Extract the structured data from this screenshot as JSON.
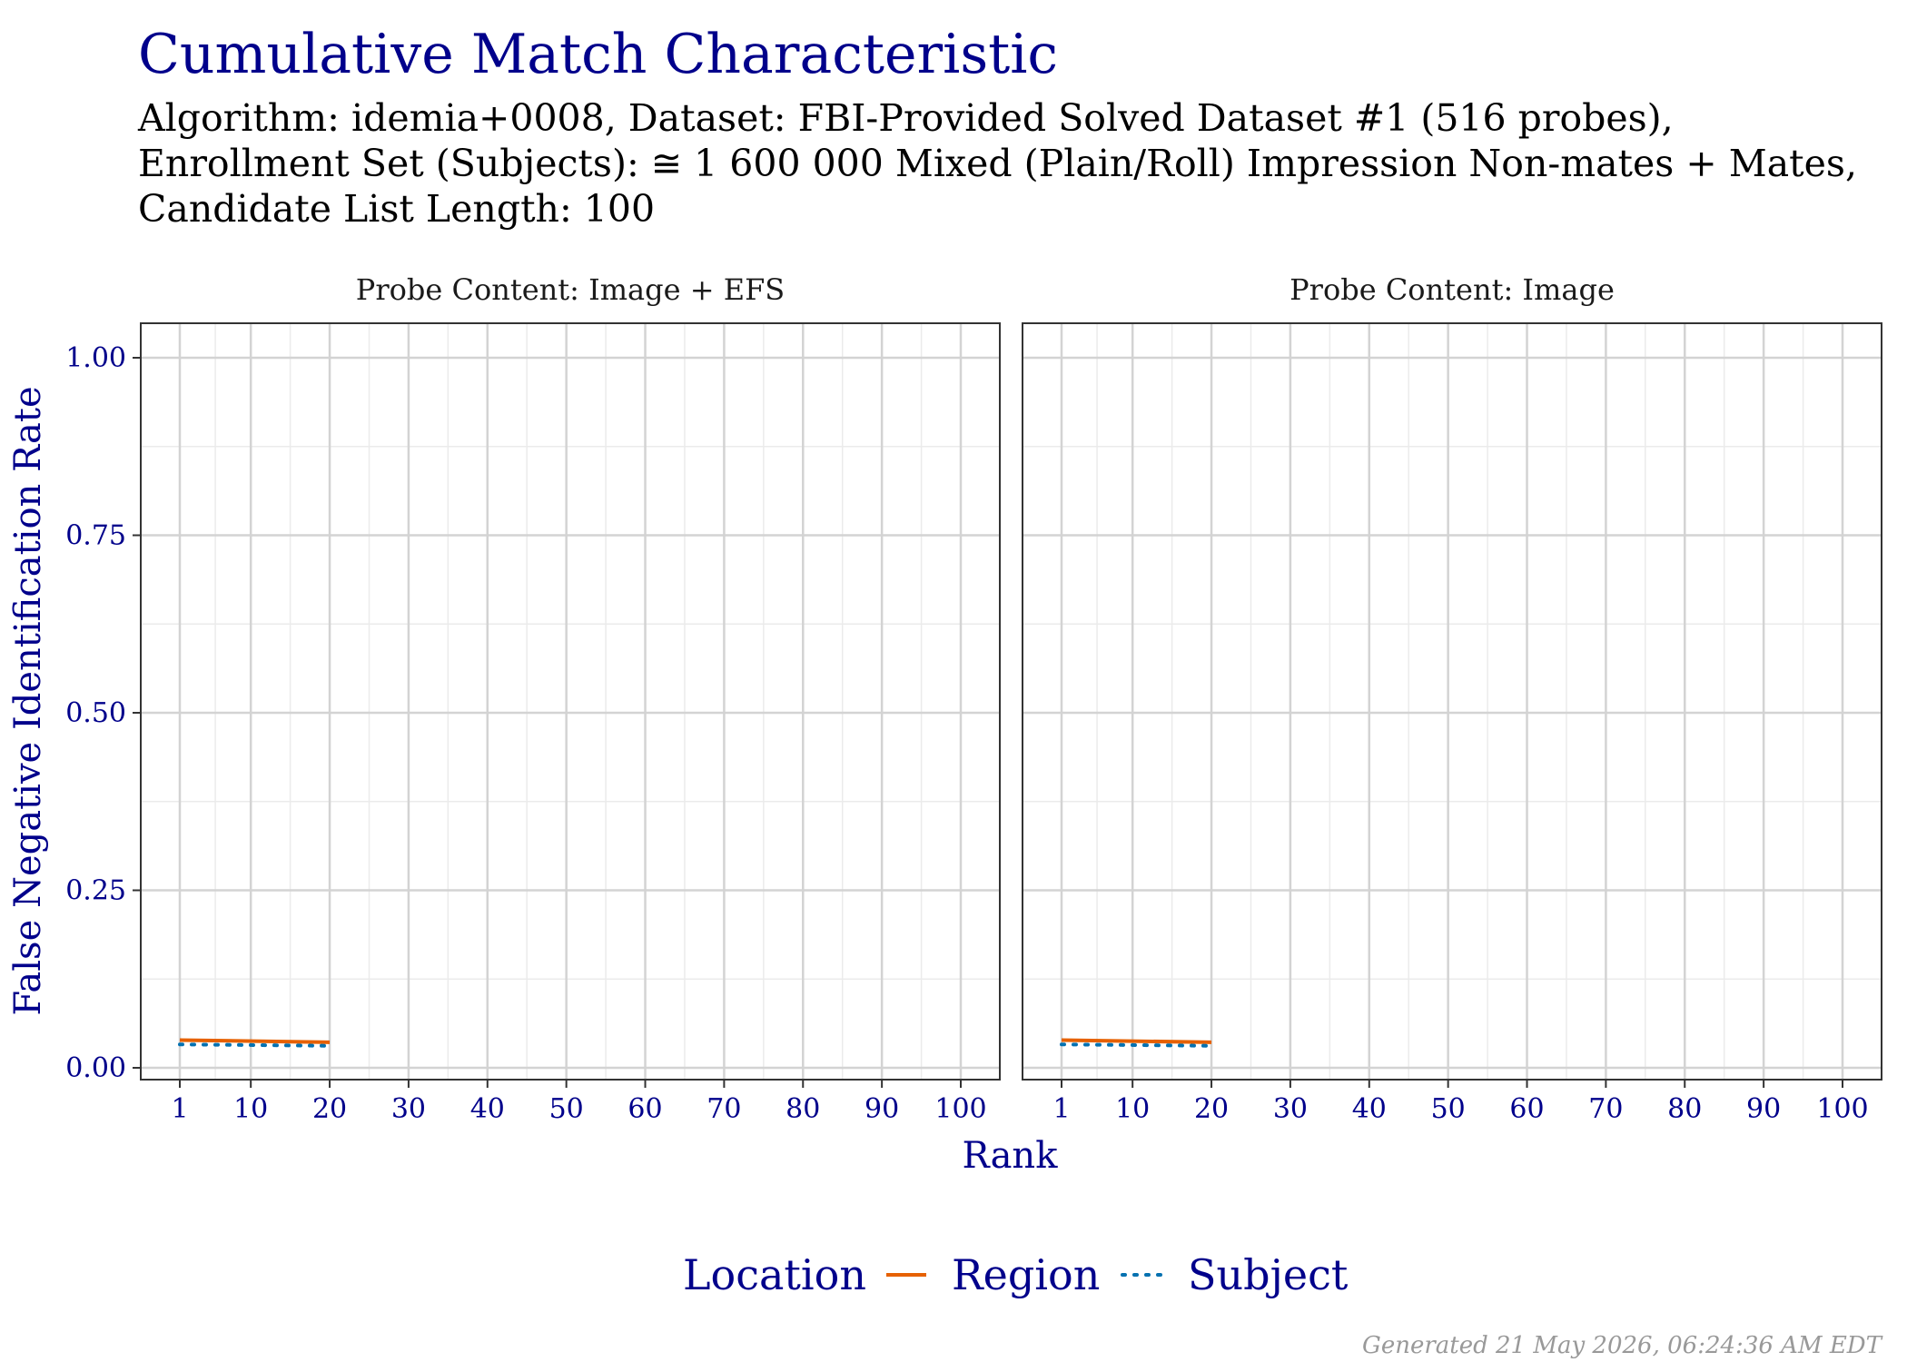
{
  "chart_data": {
    "type": "line",
    "title": "Cumulative Match Characteristic",
    "subtitle_lines": [
      "Algorithm: idemia+0008, Dataset: FBI-Provided Solved Dataset #1 (516 probes),",
      "Enrollment Set (Subjects): ≅ 1 600 000 Mixed (Plain/Roll) Impression Non-mates + Mates,",
      "Candidate List Length: 100"
    ],
    "xlabel": "Rank",
    "ylabel": "False Negative Identification Rate",
    "x_ticks": [
      1,
      10,
      20,
      30,
      40,
      50,
      60,
      70,
      80,
      90,
      100
    ],
    "y_ticks": [
      "0.00",
      "0.25",
      "0.50",
      "0.75",
      "1.00"
    ],
    "xlim": [
      1,
      100
    ],
    "ylim": [
      0,
      1
    ],
    "grid": true,
    "legend_position": "bottom",
    "legend_title": "Location",
    "panels": [
      {
        "label": "Probe Content: Image + EFS",
        "series": [
          {
            "name": "Region",
            "color": "#e66101",
            "dash": "solid",
            "x": [
              1,
              20
            ],
            "y": [
              0.039,
              0.036
            ]
          },
          {
            "name": "Subject",
            "color": "#0571b0",
            "dash": "dotted",
            "x": [
              1,
              20
            ],
            "y": [
              0.033,
              0.031
            ]
          }
        ]
      },
      {
        "label": "Probe Content: Image",
        "series": [
          {
            "name": "Region",
            "color": "#e66101",
            "dash": "solid",
            "x": [
              1,
              20
            ],
            "y": [
              0.039,
              0.036
            ]
          },
          {
            "name": "Subject",
            "color": "#0571b0",
            "dash": "dotted",
            "x": [
              1,
              20
            ],
            "y": [
              0.033,
              0.031
            ]
          }
        ]
      }
    ]
  },
  "caption": "Generated 21 May 2026, 06:24:36 AM EDT"
}
